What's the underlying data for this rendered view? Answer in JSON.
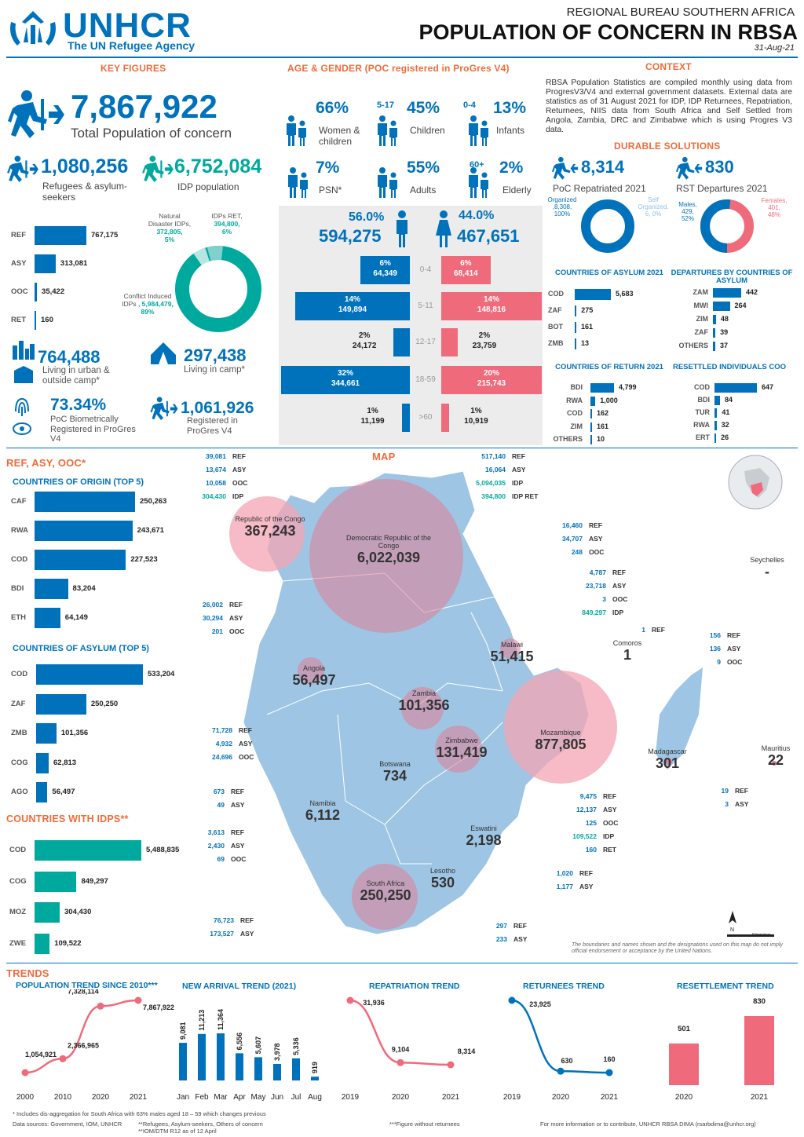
{
  "header": {
    "org": "UNHCR",
    "tagline": "The UN Refugee Agency",
    "bureau": "REGIONAL BUREAU SOUTHERN AFRICA",
    "title": "POPULATION OF CONCERN IN RBSA",
    "date": "31-Aug-21"
  },
  "key_figures": {
    "title": "KEY FIGURES",
    "total_value": "7,867,922",
    "total_label": "Total Population of concern",
    "refugees_value": "1,080,256",
    "refugees_label": "Refugees & asylum-seekers",
    "idp_value": "6,752,084",
    "idp_label": "IDP population",
    "bars": [
      {
        "label": "REF",
        "value": "767,175",
        "v": 767175
      },
      {
        "label": "ASY",
        "value": "313,081",
        "v": 313081
      },
      {
        "label": "OOC",
        "value": "35,422",
        "v": 35422
      },
      {
        "label": "RET",
        "value": "160",
        "v": 160
      }
    ],
    "donut": {
      "natural": "Natural Disaster IDPs,",
      "natural_v": "372,805,",
      "natural_p": "5%",
      "idps_ret": "IDPs RET,",
      "idps_ret_v": "394,800,",
      "idps_ret_p": "6%",
      "conflict": "Conflict Induced IDPs",
      "conflict_v": ", 5,984,479,",
      "conflict_p": "89%"
    },
    "urban_value": "764,488",
    "urban_label": "Living in urban & outside camp*",
    "camp_value": "297,438",
    "camp_label": "Living in camp*",
    "bio_value": "73.34%",
    "bio_label": "PoC Biometrically Registered in ProGres V4",
    "progres_value": "1,061,926",
    "progres_label": "Registered in ProGres V4"
  },
  "age_gender": {
    "title": "AGE & GENDER (POC registered in ProGres V4)",
    "stats": [
      {
        "pct": "66%",
        "label": "Women & children",
        "range": ""
      },
      {
        "pct": "45%",
        "label": "Children",
        "range": "5-17"
      },
      {
        "pct": "13%",
        "label": "Infants",
        "range": "0-4"
      },
      {
        "pct": "7%",
        "label": "PSN*",
        "range": ""
      },
      {
        "pct": "55%",
        "label": "Adults",
        "range": ""
      },
      {
        "pct": "2%",
        "label": "Elderly",
        "range": "60+"
      }
    ],
    "male_pct": "56.0%",
    "male_value": "594,275",
    "female_pct": "44.0%",
    "female_value": "467,651",
    "pyramid": [
      {
        "age": "0-4",
        "m_pct": "6%",
        "m_val": "64,349",
        "f_pct": "6%",
        "f_val": "68,414",
        "m": 6,
        "f": 6
      },
      {
        "age": "5-11",
        "m_pct": "14%",
        "m_val": "149,894",
        "f_pct": "14%",
        "f_val": "148,816",
        "m": 14,
        "f": 14
      },
      {
        "age": "12-17",
        "m_pct": "2%",
        "m_val": "24,172",
        "f_pct": "2%",
        "f_val": "23,759",
        "m": 2,
        "f": 2
      },
      {
        "age": "18-59",
        "m_pct": "32%",
        "m_val": "344,661",
        "f_pct": "20%",
        "f_val": "215,743",
        "m": 32,
        "f": 20
      },
      {
        "age": ">60",
        "m_pct": "1%",
        "m_val": "11,199",
        "f_pct": "1%",
        "f_val": "10,919",
        "m": 1,
        "f": 1
      }
    ]
  },
  "context": {
    "title": "CONTEXT",
    "text": "RBSA Population Statistics are compiled monthly using data from ProgresV3/V4 and external government datasets. External data are statistics as of 31 August 2021 for IDP, IDP Returnees, Repatriation, Returnees, NIIS data from South Africa and Self Settled from Angola, Zambia, DRC and Zimbabwe which is using Progres V3 data.",
    "durable_title": "DURABLE SOLUTIONS",
    "repatriated_value": "8,314",
    "repatriated_label": "PoC Repatriated 2021",
    "rst_value": "830",
    "rst_label": "RST Departures 2021",
    "rep_donut": {
      "organized": "Organized",
      "organized_v": ",8,308,",
      "organized_p": "100%",
      "self": "Self Organized,",
      "self_v": "6, 0%",
      "org": 99.9
    },
    "rst_donut": {
      "males": "Males,",
      "males_v": "429,",
      "males_p": "52%",
      "females": "Females,",
      "females_v": "401,",
      "females_p": "48%",
      "m": 52
    },
    "asylum_title": "COUNTRIES OF ASYLUM 2021",
    "asylum": [
      {
        "label": "COD",
        "value": "5,683",
        "v": 5683
      },
      {
        "label": "ZAF",
        "value": "275",
        "v": 275
      },
      {
        "label": "BOT",
        "value": "161",
        "v": 161
      },
      {
        "label": "ZMB",
        "value": "13",
        "v": 13
      }
    ],
    "departures_title": "DEPARTURES BY COUNTRIES OF ASYLUM",
    "departures": [
      {
        "label": "ZAM",
        "value": "442",
        "v": 442
      },
      {
        "label": "MWI",
        "value": "264",
        "v": 264
      },
      {
        "label": "ZIM",
        "value": "48",
        "v": 48
      },
      {
        "label": "ZAF",
        "value": "39",
        "v": 39
      },
      {
        "label": "OTHERS",
        "value": "37",
        "v": 37
      }
    ],
    "return_title": "COUNTRIES OF RETURN 2021",
    "return": [
      {
        "label": "BDI",
        "value": "4,799",
        "v": 4799
      },
      {
        "label": "RWA",
        "value": "1,000",
        "v": 1000
      },
      {
        "label": "COD",
        "value": "162",
        "v": 162
      },
      {
        "label": "ZIM",
        "value": "161",
        "v": 161
      },
      {
        "label": "OTHERS",
        "value": "10",
        "v": 10
      }
    ],
    "resettled_title": "RESETTLED INDIVIDUALS COO",
    "resettled": [
      {
        "label": "COD",
        "value": "647",
        "v": 647
      },
      {
        "label": "BDI",
        "value": "84",
        "v": 84
      },
      {
        "label": "TUR",
        "value": "41",
        "v": 41
      },
      {
        "label": "RWA",
        "value": "32",
        "v": 32
      },
      {
        "label": "ERT",
        "value": "26",
        "v": 26
      }
    ]
  },
  "ref_asy_ooc": {
    "title": "REF, ASY, OOC*",
    "origin_title": "COUNTRIES OF ORIGIN (TOP 5)",
    "origin": [
      {
        "label": "CAF",
        "value": "250,263",
        "v": 250263
      },
      {
        "label": "RWA",
        "value": "243,671",
        "v": 243671
      },
      {
        "label": "COD",
        "value": "227,523",
        "v": 227523
      },
      {
        "label": "BDI",
        "value": "83,204",
        "v": 83204
      },
      {
        "label": "ETH",
        "value": "64,149",
        "v": 64149
      }
    ],
    "asylum_title": "COUNTRIES OF ASYLUM (TOP 5)",
    "asylum": [
      {
        "label": "COD",
        "value": "533,204",
        "v": 533204
      },
      {
        "label": "ZAF",
        "value": "250,250",
        "v": 250250
      },
      {
        "label": "ZMB",
        "value": "101,356",
        "v": 101356
      },
      {
        "label": "COG",
        "value": "62,813",
        "v": 62813
      },
      {
        "label": "AGO",
        "value": "56,497",
        "v": 56497
      }
    ],
    "idps_title": "COUNTRIES WITH IDPS**",
    "idps": [
      {
        "label": "COD",
        "value": "5,488,835",
        "v": 5488835
      },
      {
        "label": "COG",
        "value": "849,297",
        "v": 849297
      },
      {
        "label": "MOZ",
        "value": "304,430",
        "v": 304430
      },
      {
        "label": "ZWE",
        "value": "109,522",
        "v": 109522
      }
    ]
  },
  "map": {
    "title": "MAP",
    "countries": [
      {
        "name": "Republic of the Congo",
        "value": "367,243"
      },
      {
        "name": "Democratic Republic of the Congo",
        "value": "6,022,039"
      },
      {
        "name": "Angola",
        "value": "56,497"
      },
      {
        "name": "Malawi",
        "value": "51,415"
      },
      {
        "name": "Comoros",
        "value": "1"
      },
      {
        "name": "Zambia",
        "value": "101,356"
      },
      {
        "name": "Mozambique",
        "value": "877,805"
      },
      {
        "name": "Zimbabwe",
        "value": "131,419"
      },
      {
        "name": "Madagascar",
        "value": "301"
      },
      {
        "name": "Botswana",
        "value": "734"
      },
      {
        "name": "Mauritius",
        "value": "22"
      },
      {
        "name": "Namibia",
        "value": "6,112"
      },
      {
        "name": "Eswatini",
        "value": "2,198"
      },
      {
        "name": "South Africa",
        "value": "250,250"
      },
      {
        "name": "Lesotho",
        "value": "530"
      },
      {
        "name": "Seychelles",
        "value": "-"
      }
    ],
    "callouts": [
      {
        "rows": [
          [
            "39,081",
            "REF"
          ],
          [
            "13,674",
            "ASY"
          ],
          [
            "10,058",
            "OOC"
          ],
          [
            "304,430",
            "IDP"
          ]
        ]
      },
      {
        "rows": [
          [
            "517,140",
            "REF"
          ],
          [
            "16,064",
            "ASY"
          ],
          [
            "5,094,035",
            "IDP"
          ],
          [
            "394,800",
            "IDP RET"
          ]
        ]
      },
      {
        "rows": [
          [
            "16,460",
            "REF"
          ],
          [
            "34,707",
            "ASY"
          ],
          [
            "248",
            "OOC"
          ]
        ]
      },
      {
        "rows": [
          [
            "4,787",
            "REF"
          ],
          [
            "23,718",
            "ASY"
          ],
          [
            "3",
            "OOC"
          ],
          [
            "849,297",
            "IDP"
          ]
        ]
      },
      {
        "rows": [
          [
            "26,002",
            "REF"
          ],
          [
            "30,294",
            "ASY"
          ],
          [
            "201",
            "OOC"
          ]
        ]
      },
      {
        "rows": [
          [
            "1",
            "REF"
          ]
        ]
      },
      {
        "rows": [
          [
            "156",
            "REF"
          ],
          [
            "136",
            "ASY"
          ],
          [
            "9",
            "OOC"
          ]
        ]
      },
      {
        "rows": [
          [
            "71,728",
            "REF"
          ],
          [
            "4,932",
            "ASY"
          ],
          [
            "24,696",
            "OOC"
          ]
        ]
      },
      {
        "rows": [
          [
            "673",
            "REF"
          ],
          [
            "49",
            "ASY"
          ]
        ]
      },
      {
        "rows": [
          [
            "9,475",
            "REF"
          ],
          [
            "12,137",
            "ASY"
          ],
          [
            "125",
            "OOC"
          ],
          [
            "109,522",
            "IDP"
          ],
          [
            "160",
            "RET"
          ]
        ]
      },
      {
        "rows": [
          [
            "19",
            "REF"
          ],
          [
            "3",
            "ASY"
          ]
        ]
      },
      {
        "rows": [
          [
            "3,613",
            "REF"
          ],
          [
            "2,430",
            "ASY"
          ],
          [
            "69",
            "OOC"
          ]
        ]
      },
      {
        "rows": [
          [
            "1,020",
            "REF"
          ],
          [
            "1,177",
            "ASY"
          ]
        ]
      },
      {
        "rows": [
          [
            "76,723",
            "REF"
          ],
          [
            "173,527",
            "ASY"
          ]
        ]
      },
      {
        "rows": [
          [
            "297",
            "REF"
          ],
          [
            "233",
            "ASY"
          ]
        ]
      }
    ],
    "disclaimer": "The boundaries and names shown and the designations used on this map do not imply official endorsement or acceptance by the United Nations.",
    "scale": "Kilometers"
  },
  "trends": {
    "title": "TRENDS",
    "pop_title": "POPULATION TREND SINCE 2010***",
    "arrival_title": "NEW ARRIVAL TREND (2021)",
    "repat_title": "REPATRIATION TREND",
    "returnees_title": "RETURNEES TREND",
    "resettlement_title": "RESETTLEMENT TREND"
  },
  "chart_data": [
    {
      "type": "line",
      "title": "POPULATION TREND SINCE 2010***",
      "x": [
        "2000",
        "2010",
        "2020",
        "2021"
      ],
      "values": [
        1054921,
        2366965,
        7328114,
        7867922
      ],
      "labels": [
        "1,054,921",
        "2,366,965",
        "7,328,114",
        "7,867,922"
      ]
    },
    {
      "type": "bar",
      "title": "NEW ARRIVAL TREND (2021)",
      "categories": [
        "Jan",
        "Feb",
        "Mar",
        "Apr",
        "May",
        "Jun",
        "Jul",
        "Aug"
      ],
      "values": [
        9081,
        11213,
        11364,
        6556,
        5607,
        3978,
        5336,
        919
      ],
      "labels": [
        "9,081",
        "11,213",
        "11,364",
        "6,556",
        "5,607",
        "3,978",
        "5,336",
        "919"
      ]
    },
    {
      "type": "line",
      "title": "REPATRIATION TREND",
      "x": [
        "2019",
        "2020",
        "2021"
      ],
      "values": [
        31936,
        9104,
        8314
      ],
      "labels": [
        "31,936",
        "9,104",
        "8,314"
      ]
    },
    {
      "type": "line",
      "title": "RETURNEES TREND",
      "x": [
        "2019",
        "2020",
        "2021"
      ],
      "values": [
        23925,
        630,
        160
      ],
      "labels": [
        "23,925",
        "630",
        "160"
      ]
    },
    {
      "type": "bar",
      "title": "RESETTLEMENT TREND",
      "categories": [
        "2020",
        "2021"
      ],
      "values": [
        501,
        830
      ],
      "labels": [
        "501",
        "830"
      ]
    }
  ],
  "footer": {
    "note1": "* Includes dis-aggregation for South Africa with 63% males aged 18 – 59 which changes previous",
    "sources": "Data sources: Government, IOM, UNHCR",
    "note2": "**Refugees, Asylum-seekers, Others of concern",
    "note3": "**IOM/DTM R12 as of 12 April",
    "note4": "***Figure without returnees",
    "contact": "For more information or to contribute, UNHCR RBSA DIMA (rsarbdima@unhcr.org)"
  },
  "colors": {
    "blue": "#0072bc",
    "pink": "#ef6b7c",
    "teal": "#00a99d",
    "orange": "#ef6b3a",
    "map": "#9ec6e4"
  }
}
